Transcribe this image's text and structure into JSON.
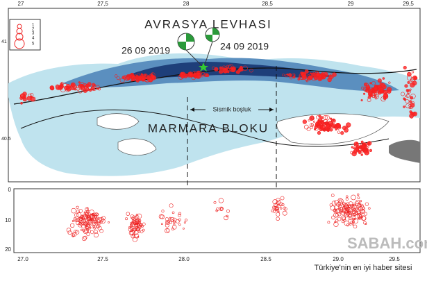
{
  "map": {
    "top_ticks": [
      "27",
      "27,5",
      "28",
      "28,5",
      "29",
      "29,5"
    ],
    "left_ticks": [
      "41",
      "40.5"
    ],
    "plate_label": "AVRASYA LEVHASI",
    "block_label": "MARMARA BLOKU",
    "event_labels": [
      "26 09 2019",
      "24 09 2019"
    ],
    "gap_label": "Sismik boşluk",
    "legend": [
      "1",
      "2",
      "3",
      "4",
      "5"
    ]
  },
  "section": {
    "depth_ticks": [
      "0",
      "10",
      "20"
    ],
    "x_ticks": [
      "27.0",
      "27.5",
      "28.0",
      "28.5",
      "29.0",
      "29.5"
    ]
  },
  "watermark": {
    "brand": "SABAH.com.tr",
    "slogan": "Türkiye'nin en iyi haber sitesi"
  }
}
